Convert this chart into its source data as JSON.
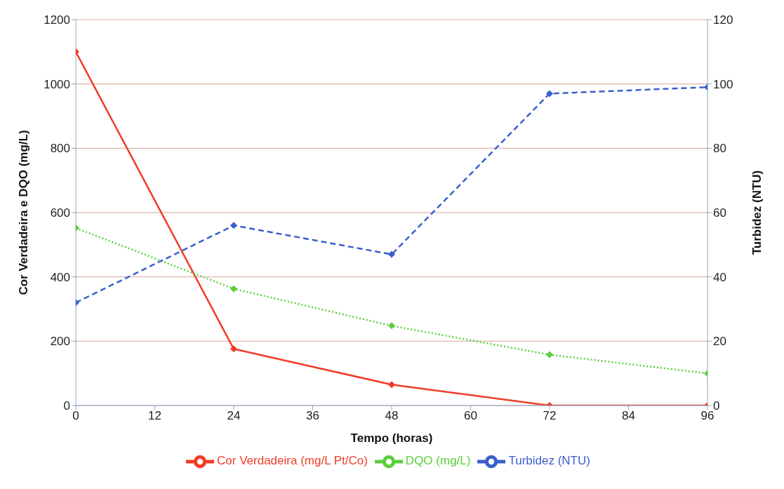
{
  "chart_data": {
    "type": "line",
    "xlabel": "Tempo (horas)",
    "ylabel": "Cor Verdadeira e DQO (mg/L)",
    "y2label": "Turbidez (NTU)",
    "x": [
      0,
      24,
      48,
      72,
      96
    ],
    "xlim": [
      0,
      96
    ],
    "xticks": [
      0,
      12,
      24,
      36,
      48,
      60,
      72,
      84,
      96
    ],
    "ylim": [
      0,
      1200
    ],
    "yticks": [
      0,
      200,
      400,
      600,
      800,
      1000,
      1200
    ],
    "y2lim": [
      0,
      120
    ],
    "y2ticks": [
      0,
      20,
      40,
      60,
      80,
      100,
      120
    ],
    "grid": "y",
    "legend": "bottom",
    "marker": "diamond",
    "series": [
      {
        "name": "Cor Verdadeira (mg/L Pt/Co)",
        "color": "#f03c28",
        "line_style": "solid",
        "values": [
          1100,
          176,
          65,
          0,
          0
        ]
      },
      {
        "name": "DQO (mg/L)",
        "color": "#5ccf3c",
        "line_style": "dotted",
        "values": [
          552,
          363,
          248,
          158,
          100
        ]
      },
      {
        "name": "Turbidez (NTU)",
        "color": "#3a5fcd",
        "line_style": "dashed",
        "axis": "y2",
        "values": [
          32,
          56,
          47,
          97,
          99
        ]
      }
    ]
  }
}
